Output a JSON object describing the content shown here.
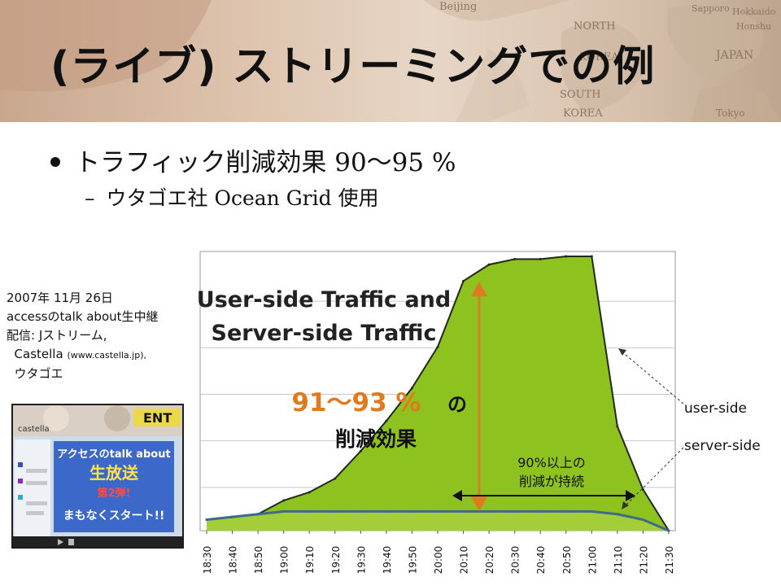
{
  "slide": {
    "title": "(ライブ) ストリーミングでの例",
    "bullet_1": "トラフィック削減効果 90〜95 %",
    "bullet_2_dash": "–",
    "bullet_2": "ウタゴエ社 Ocean Grid 使用"
  },
  "map_labels": [
    "Beijing",
    "NORTH",
    "KOREA",
    "SOUTH",
    "KOREA",
    "JAPAN",
    "Tokyo",
    "Sapporo",
    "Hokkaido",
    "Honshu"
  ],
  "note": {
    "line_1": "2007年 11月 26日",
    "line_2": "accessのtalk about生中継",
    "line_3": "配信: Jストリーム,",
    "line_4_main": "Castella",
    "line_4_small": "(www.castella.jp),",
    "line_5": "ウタゴエ"
  },
  "thumbnail": {
    "logo": "castella",
    "corner_text": "ENT",
    "banner_line_1": "アクセスのtalk about",
    "banner_line_2": "生放送",
    "banner_line_3": "第2弾!",
    "banner_line_4": "まもなくスタート!!"
  },
  "colors": {
    "user_area": "#8dc21f",
    "server_line": "#3d6b8c",
    "accent_orange": "#e07a1f",
    "title_text": "#111111"
  },
  "chart_data": {
    "type": "area",
    "title_line_1": "User-side Traffic and",
    "title_line_2": "Server-side Traffic",
    "x": [
      "18:30",
      "18:40",
      "18:50",
      "19:00",
      "19:10",
      "19:20",
      "19:30",
      "19:40",
      "19:50",
      "20:00",
      "20:10",
      "20:20",
      "20:30",
      "20:40",
      "20:50",
      "21:00",
      "21:10",
      "21:20",
      "21:30"
    ],
    "ylim": [
      0,
      100
    ],
    "grid": true,
    "legend": "right",
    "series": [
      {
        "name": "user-side",
        "values": [
          4,
          5,
          6,
          11,
          14,
          19,
          29,
          40,
          52,
          67,
          91,
          97,
          99,
          99,
          100,
          100,
          38,
          15,
          0
        ]
      },
      {
        "name": "server-side",
        "values": [
          4,
          5,
          6,
          7,
          7,
          7,
          7,
          7,
          7,
          7,
          7,
          7,
          7,
          7,
          7,
          7,
          6,
          4,
          0
        ]
      }
    ],
    "annotations": {
      "reduction_value": "91〜93 %",
      "reduction_particle": "の",
      "reduction_label": "削減効果",
      "sustained_line_1": "90%以上の",
      "sustained_line_2": "削減が持続"
    }
  }
}
